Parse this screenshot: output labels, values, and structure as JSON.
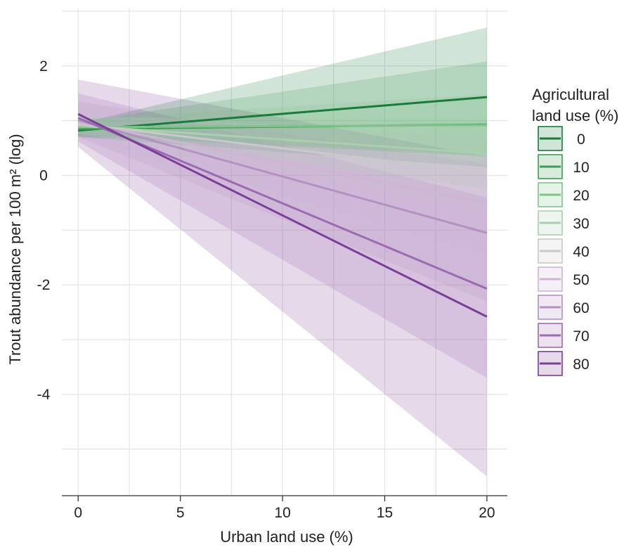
{
  "chart_data": {
    "type": "line",
    "xlabel": "Urban land use (%)",
    "ylabel": "Trout abundance per 100 m² (log)",
    "xlim": [
      -0.8,
      21.0
    ],
    "ylim": [
      -5.85,
      3.05
    ],
    "x_ticks": [
      0,
      5,
      10,
      15,
      20
    ],
    "x_tick_labels": [
      "0",
      "5",
      "10",
      "15",
      "20"
    ],
    "y_ticks": [
      -4,
      -2,
      0,
      2
    ],
    "y_tick_labels": [
      "-4",
      "-2",
      "0",
      "2"
    ],
    "grid": true,
    "legend": {
      "title_lines": [
        "Agricultural",
        "land use (%)"
      ],
      "placement": "right"
    },
    "x": [
      0,
      20
    ],
    "series": [
      {
        "name": "0",
        "color": "#1a7a3a",
        "values": [
          0.82,
          1.43
        ],
        "band": {
          "lower": [
            0.7,
            0.15
          ],
          "upper": [
            0.95,
            2.7
          ]
        }
      },
      {
        "name": "10",
        "color": "#3f9a55",
        "values": [
          0.85,
          0.93
        ],
        "band": {
          "lower": [
            0.72,
            0.35
          ],
          "upper": [
            0.98,
            2.08
          ]
        }
      },
      {
        "name": "20",
        "color": "#7fc28a",
        "values": [
          0.88,
          0.92
        ],
        "band": {
          "lower": [
            0.75,
            0.38
          ],
          "upper": [
            1.02,
            1.48
          ]
        }
      },
      {
        "name": "30",
        "color": "#a8cfae",
        "values": [
          0.91,
          0.4
        ],
        "band": {
          "lower": [
            0.77,
            -0.25
          ],
          "upper": [
            1.06,
            1.05
          ]
        }
      },
      {
        "name": "40",
        "color": "#c9c9c9",
        "values": [
          0.94,
          0.05
        ],
        "band": {
          "lower": [
            0.76,
            -0.6
          ],
          "upper": [
            1.12,
            0.7
          ]
        }
      },
      {
        "name": "50",
        "color": "#cfb4d6",
        "values": [
          0.97,
          -0.5
        ],
        "band": {
          "lower": [
            0.74,
            -1.4
          ],
          "upper": [
            1.22,
            0.4
          ]
        }
      },
      {
        "name": "60",
        "color": "#b391c2",
        "values": [
          1.01,
          -1.05
        ],
        "band": {
          "lower": [
            0.7,
            -2.3
          ],
          "upper": [
            1.35,
            0.2
          ]
        }
      },
      {
        "name": "70",
        "color": "#9a6bb0",
        "values": [
          1.05,
          -2.07
        ],
        "band": {
          "lower": [
            0.62,
            -3.7
          ],
          "upper": [
            1.5,
            -0.4
          ]
        }
      },
      {
        "name": "80",
        "color": "#7b3f98",
        "values": [
          1.12,
          -2.58
        ],
        "band": {
          "lower": [
            0.52,
            -5.5
          ],
          "upper": [
            1.75,
            0.35
          ]
        }
      }
    ]
  }
}
